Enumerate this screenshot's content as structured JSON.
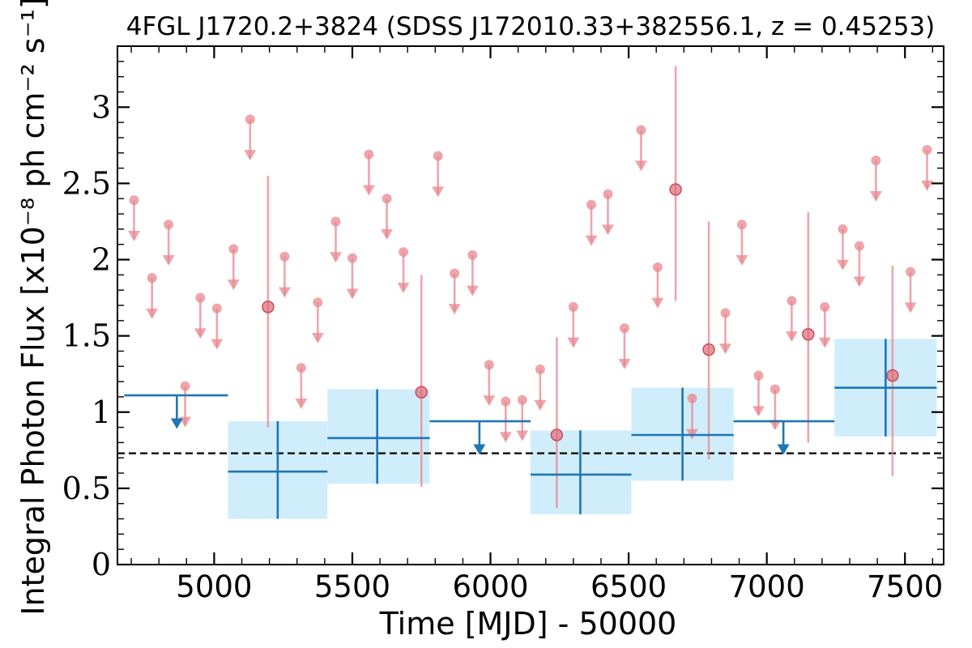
{
  "chart_data": {
    "type": "scatter",
    "title": "4FGL J1720.2+3824 (SDSS J172010.33+382556.1, z = 0.45253)",
    "xlabel": "Time [MJD] - 50000",
    "ylabel": "Integral Photon Flux [x10⁻⁸ ph cm⁻² s⁻¹]",
    "xlim": [
      4650,
      7640
    ],
    "ylim": [
      0,
      3.4
    ],
    "xticks": [
      5000,
      5500,
      6000,
      6500,
      7000,
      7500
    ],
    "xtick_labels": [
      "5000",
      "5500",
      "6000",
      "6500",
      "7000",
      "7500"
    ],
    "yticks": [
      0,
      0.5,
      1,
      1.5,
      2,
      2.5,
      3
    ],
    "ytick_labels": [
      "0",
      "0.5",
      "1",
      "1.5",
      "2",
      "2.5",
      "3"
    ],
    "reference_line": 0.73,
    "colors": {
      "short_bins": "#e8878f",
      "long_bins": "#1f77b4",
      "band": "#d0edfb"
    },
    "short_bins_upper_limits": [
      {
        "x": 4710,
        "y": 2.39
      },
      {
        "x": 4775,
        "y": 1.88
      },
      {
        "x": 4835,
        "y": 2.23
      },
      {
        "x": 4895,
        "y": 1.17
      },
      {
        "x": 4950,
        "y": 1.75
      },
      {
        "x": 5010,
        "y": 1.68
      },
      {
        "x": 5070,
        "y": 2.07
      },
      {
        "x": 5130,
        "y": 2.92
      },
      {
        "x": 5255,
        "y": 2.02
      },
      {
        "x": 5315,
        "y": 1.29
      },
      {
        "x": 5375,
        "y": 1.72
      },
      {
        "x": 5440,
        "y": 2.25
      },
      {
        "x": 5500,
        "y": 2.01
      },
      {
        "x": 5560,
        "y": 2.69
      },
      {
        "x": 5625,
        "y": 2.4
      },
      {
        "x": 5685,
        "y": 2.05
      },
      {
        "x": 5810,
        "y": 2.68
      },
      {
        "x": 5870,
        "y": 1.91
      },
      {
        "x": 5935,
        "y": 2.03
      },
      {
        "x": 5995,
        "y": 1.31
      },
      {
        "x": 6055,
        "y": 1.07
      },
      {
        "x": 6115,
        "y": 1.08
      },
      {
        "x": 6180,
        "y": 1.28
      },
      {
        "x": 6300,
        "y": 1.69
      },
      {
        "x": 6365,
        "y": 2.36
      },
      {
        "x": 6425,
        "y": 2.43
      },
      {
        "x": 6485,
        "y": 1.55
      },
      {
        "x": 6545,
        "y": 2.85
      },
      {
        "x": 6605,
        "y": 1.95
      },
      {
        "x": 6730,
        "y": 1.09
      },
      {
        "x": 6850,
        "y": 1.65
      },
      {
        "x": 6910,
        "y": 2.23
      },
      {
        "x": 6970,
        "y": 1.24
      },
      {
        "x": 7030,
        "y": 1.15
      },
      {
        "x": 7090,
        "y": 1.73
      },
      {
        "x": 7210,
        "y": 1.69
      },
      {
        "x": 7275,
        "y": 2.2
      },
      {
        "x": 7335,
        "y": 2.09
      },
      {
        "x": 7395,
        "y": 2.65
      },
      {
        "x": 7520,
        "y": 1.92
      },
      {
        "x": 7580,
        "y": 2.72
      }
    ],
    "short_bins_detections": [
      {
        "x": 5195,
        "y": 1.69,
        "ylow": 0.9,
        "yhigh": 2.55
      },
      {
        "x": 5750,
        "y": 1.13,
        "ylow": 0.51,
        "yhigh": 1.9
      },
      {
        "x": 6240,
        "y": 0.85,
        "ylow": 0.37,
        "yhigh": 1.49
      },
      {
        "x": 6670,
        "y": 2.46,
        "ylow": 1.73,
        "yhigh": 3.27
      },
      {
        "x": 6790,
        "y": 1.41,
        "ylow": 0.69,
        "yhigh": 2.25
      },
      {
        "x": 7150,
        "y": 1.51,
        "ylow": 0.8,
        "yhigh": 2.31
      },
      {
        "x": 7455,
        "y": 1.24,
        "ylow": 0.58,
        "yhigh": 1.96
      }
    ],
    "long_bins_detections": [
      {
        "x": 5230,
        "xlow": 5050,
        "xhigh": 5410,
        "y": 0.61,
        "ylow": 0.3,
        "yhigh": 0.94
      },
      {
        "x": 5590,
        "xlow": 5410,
        "xhigh": 5780,
        "y": 0.83,
        "ylow": 0.53,
        "yhigh": 1.15
      },
      {
        "x": 6325,
        "xlow": 6145,
        "xhigh": 6510,
        "y": 0.59,
        "ylow": 0.33,
        "yhigh": 0.88
      },
      {
        "x": 6695,
        "xlow": 6510,
        "xhigh": 6880,
        "y": 0.85,
        "ylow": 0.55,
        "yhigh": 1.16
      },
      {
        "x": 7430,
        "xlow": 7245,
        "xhigh": 7615,
        "y": 1.16,
        "ylow": 0.84,
        "yhigh": 1.48
      }
    ],
    "long_bins_upper_limits": [
      {
        "x": 4865,
        "xlow": 4675,
        "xhigh": 5050,
        "y": 1.11
      },
      {
        "x": 5960,
        "xlow": 5780,
        "xhigh": 6145,
        "y": 0.94
      },
      {
        "x": 7060,
        "xlow": 6880,
        "xhigh": 7245,
        "y": 0.94
      }
    ]
  }
}
